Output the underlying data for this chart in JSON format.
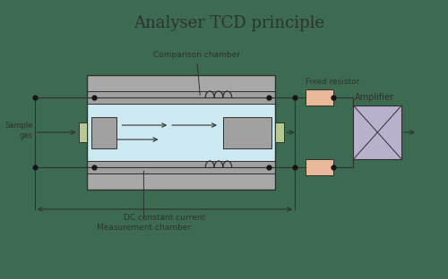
{
  "title": "Analyser TCD principle",
  "title_fontsize": 13,
  "bg_color": "#3d6b52",
  "colors": {
    "outer_block": "#a8a8a8",
    "inner_blue": "#cce8f0",
    "inner_gray": "#a0a0a0",
    "connector": "#b8c890",
    "resistor": "#e8b898",
    "amplifier": "#b8b0cc",
    "line": "#303030",
    "text": "#303030",
    "dot": "#151515",
    "white_bg": "#e8e8e8"
  },
  "labels": {
    "comparison": "Comparison chamber",
    "measurement": "Measurement chamber",
    "sample_gas": "Sample\ngas",
    "fixed_resistor": "Fixed resistor",
    "amplifier": "Amplifier",
    "dc": "DC constant current"
  }
}
